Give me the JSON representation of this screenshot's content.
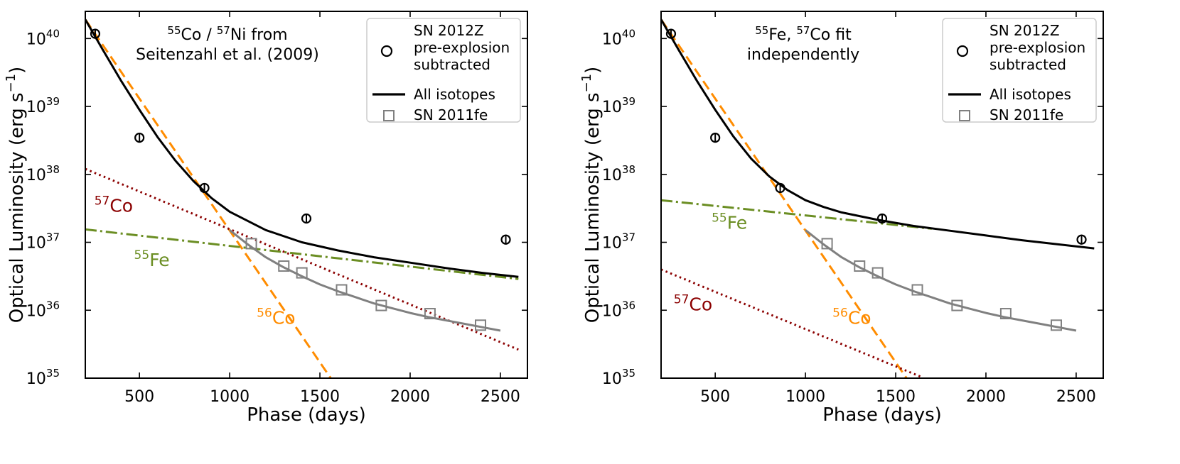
{
  "chart_data": [
    {
      "type": "line",
      "annotation": {
        "text_parts": [
          "55",
          "Co / ",
          "57",
          "Ni from"
        ],
        "line2": "Seitenzahl et al. (2009)"
      },
      "xlabel": "Phase (days)",
      "ylabel": "Optical Luminosity (erg s",
      "ylabel_sup": "−1",
      "ylabel_close": ")",
      "xlim": [
        200,
        2650
      ],
      "ylim_log10": [
        35,
        40.4
      ],
      "yscale": "log",
      "xticks": [
        500,
        1000,
        1500,
        2000,
        2500
      ],
      "yticks": [
        35,
        36,
        37,
        38,
        39,
        40
      ],
      "ytick_base": "10",
      "legend": {
        "placement": "top-right",
        "entries": [
          {
            "lines": [
              "SN 2012Z",
              "pre-explosion",
              "subtracted"
            ],
            "style": "circle"
          },
          {
            "lines": [
              "All isotopes"
            ],
            "style": "solid-black"
          },
          {
            "lines": [
              "SN 2011fe"
            ],
            "style": "square"
          }
        ]
      },
      "series": [
        {
          "label_sup": "56",
          "label_base": "Co",
          "label_at": [
            1150,
            35.8
          ],
          "color": "#ff8c00",
          "dash": "dashed",
          "x": [
            200,
            1560
          ],
          "y_log10": [
            40.28,
            35.0
          ]
        },
        {
          "label_sup": "57",
          "label_base": "Co",
          "label_at": [
            250,
            37.45
          ],
          "color": "#8b0000",
          "dash": "dotted",
          "x": [
            200,
            2600
          ],
          "y_log10": [
            38.08,
            35.42
          ]
        },
        {
          "label_sup": "55",
          "label_base": "Fe",
          "label_at": [
            470,
            36.65
          ],
          "color": "#6b8e23",
          "dash": "dashdot",
          "x": [
            200,
            2600
          ],
          "y_log10": [
            37.19,
            36.46
          ]
        },
        {
          "name": "All isotopes",
          "color": "#000000",
          "dash": "solid",
          "x": [
            200,
            300,
            400,
            500,
            600,
            700,
            800,
            900,
            1000,
            1200,
            1400,
            1600,
            1800,
            2000,
            2200,
            2400,
            2600
          ],
          "y_log10": [
            40.28,
            39.82,
            39.37,
            38.95,
            38.55,
            38.2,
            37.9,
            37.65,
            37.45,
            37.18,
            37.0,
            36.88,
            36.78,
            36.7,
            36.62,
            36.55,
            36.49
          ]
        },
        {
          "name": "SN 2011fe fit",
          "color": "#808080",
          "dash": "solid",
          "x": [
            1000,
            1100,
            1200,
            1300,
            1400,
            1500,
            1600,
            1700,
            1800,
            1900,
            2000,
            2100,
            2200,
            2300,
            2400,
            2500
          ],
          "y_log10": [
            37.18,
            36.97,
            36.78,
            36.63,
            36.5,
            36.38,
            36.28,
            36.19,
            36.1,
            36.03,
            35.96,
            35.9,
            35.85,
            35.8,
            35.75,
            35.7
          ]
        }
      ],
      "points_2012Z": [
        {
          "x": 255,
          "y_log10": 40.07
        },
        {
          "x": 500,
          "y_log10": 38.54
        },
        {
          "x": 860,
          "y_log10": 37.8
        },
        {
          "x": 1425,
          "y_log10": 37.35
        },
        {
          "x": 2530,
          "y_log10": 37.04
        }
      ],
      "points_2011fe": [
        {
          "x": 1120,
          "y_log10": 36.98
        },
        {
          "x": 1300,
          "y_log10": 36.65
        },
        {
          "x": 1400,
          "y_log10": 36.55
        },
        {
          "x": 1620,
          "y_log10": 36.3
        },
        {
          "x": 1840,
          "y_log10": 36.07
        },
        {
          "x": 2110,
          "y_log10": 35.95
        },
        {
          "x": 2390,
          "y_log10": 35.78
        }
      ]
    },
    {
      "type": "line",
      "annotation": {
        "text_parts": [
          "55",
          "Fe, ",
          "57",
          "Co fit"
        ],
        "line2": "independently"
      },
      "xlabel": "Phase (days)",
      "ylabel": "Optical Luminosity (erg s",
      "ylabel_sup": "−1",
      "ylabel_close": ")",
      "xlim": [
        200,
        2650
      ],
      "ylim_log10": [
        35,
        40.4
      ],
      "yscale": "log",
      "xticks": [
        500,
        1000,
        1500,
        2000,
        2500
      ],
      "yticks": [
        35,
        36,
        37,
        38,
        39,
        40
      ],
      "ytick_base": "10",
      "legend": {
        "placement": "top-right",
        "entries": [
          {
            "lines": [
              "SN 2012Z",
              "pre-explosion",
              "subtracted"
            ],
            "style": "circle"
          },
          {
            "lines": [
              "All isotopes"
            ],
            "style": "solid-black"
          },
          {
            "lines": [
              "SN 2011fe"
            ],
            "style": "square"
          }
        ]
      },
      "series": [
        {
          "label_sup": "56",
          "label_base": "Co",
          "label_at": [
            1150,
            35.8
          ],
          "color": "#ff8c00",
          "dash": "dashed",
          "x": [
            200,
            1560
          ],
          "y_log10": [
            40.28,
            35.0
          ]
        },
        {
          "label_sup": "57",
          "label_base": "Co",
          "label_at": [
            270,
            36.0
          ],
          "color": "#8b0000",
          "dash": "dotted",
          "x": [
            200,
            1640
          ],
          "y_log10": [
            36.6,
            35.02
          ]
        },
        {
          "label_sup": "55",
          "label_base": "Fe",
          "label_at": [
            480,
            37.2
          ],
          "color": "#6b8e23",
          "dash": "dashdot",
          "x": [
            200,
            1700
          ],
          "y_log10": [
            37.62,
            37.2
          ]
        },
        {
          "name": "All isotopes",
          "color": "#000000",
          "dash": "solid",
          "x": [
            200,
            300,
            400,
            500,
            600,
            700,
            800,
            900,
            1000,
            1100,
            1200,
            1400,
            1600,
            1800,
            2000,
            2200,
            2400,
            2600
          ],
          "y_log10": [
            40.28,
            39.82,
            39.37,
            38.95,
            38.56,
            38.23,
            37.97,
            37.77,
            37.62,
            37.52,
            37.44,
            37.33,
            37.24,
            37.17,
            37.1,
            37.03,
            36.97,
            36.91
          ]
        },
        {
          "name": "SN 2011fe fit",
          "color": "#808080",
          "dash": "solid",
          "x": [
            1000,
            1100,
            1200,
            1300,
            1400,
            1500,
            1600,
            1700,
            1800,
            1900,
            2000,
            2100,
            2200,
            2300,
            2400,
            2500
          ],
          "y_log10": [
            37.18,
            36.97,
            36.78,
            36.63,
            36.5,
            36.38,
            36.28,
            36.19,
            36.1,
            36.03,
            35.96,
            35.9,
            35.85,
            35.8,
            35.75,
            35.7
          ]
        }
      ],
      "points_2012Z": [
        {
          "x": 255,
          "y_log10": 40.07
        },
        {
          "x": 500,
          "y_log10": 38.54
        },
        {
          "x": 860,
          "y_log10": 37.8
        },
        {
          "x": 1425,
          "y_log10": 37.35
        },
        {
          "x": 2530,
          "y_log10": 37.04
        }
      ],
      "points_2011fe": [
        {
          "x": 1120,
          "y_log10": 36.98
        },
        {
          "x": 1300,
          "y_log10": 36.65
        },
        {
          "x": 1400,
          "y_log10": 36.55
        },
        {
          "x": 1620,
          "y_log10": 36.3
        },
        {
          "x": 1840,
          "y_log10": 36.07
        },
        {
          "x": 2110,
          "y_log10": 35.95
        },
        {
          "x": 2390,
          "y_log10": 35.78
        }
      ]
    }
  ]
}
